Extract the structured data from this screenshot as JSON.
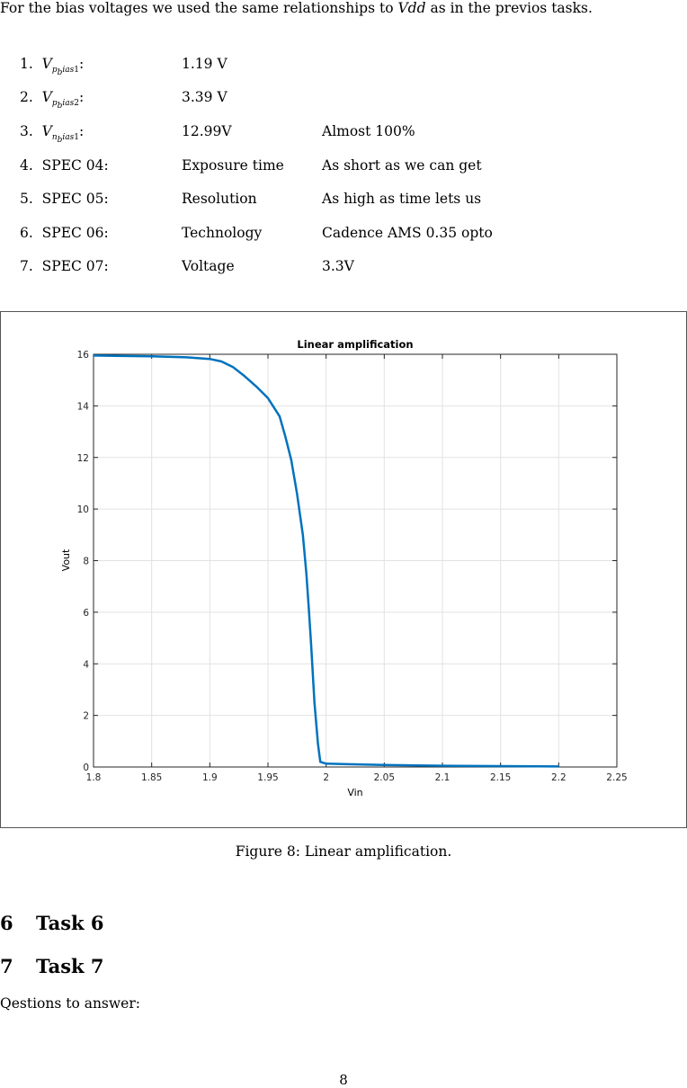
{
  "intro": {
    "text_before": "For the bias voltages we used the same relationships to ",
    "vdd": "Vdd",
    "text_after": " as in the previos tasks."
  },
  "spec_list": [
    {
      "number": "1.",
      "var_main": "V",
      "var_sub": "p",
      "var_subsub": "b",
      "var_rest": "ias",
      "var_idx": "1",
      "colon": ":",
      "value": "1.19 V",
      "note": ""
    },
    {
      "number": "2.",
      "var_main": "V",
      "var_sub": "p",
      "var_subsub": "b",
      "var_rest": "ias",
      "var_idx": "2",
      "colon": ":",
      "value": "3.39 V",
      "note": ""
    },
    {
      "number": "3.",
      "var_main": "V",
      "var_sub": "n",
      "var_subsub": "b",
      "var_rest": "ias",
      "var_idx": "1",
      "colon": ":",
      "value": "12.99V",
      "note": "Almost 100%"
    },
    {
      "number": "4.",
      "label": "SPEC 04:",
      "value": "Exposure time",
      "note": "As short as we can get"
    },
    {
      "number": "5.",
      "label": "SPEC 05:",
      "value": "Resolution",
      "note": "As high as time lets us"
    },
    {
      "number": "6.",
      "label": "SPEC 06:",
      "value": "Technology",
      "note": "Cadence AMS 0.35 opto"
    },
    {
      "number": "7.",
      "label": "SPEC 07:",
      "value": "Voltage",
      "note": "3.3V"
    }
  ],
  "figure": {
    "caption": "Figure 8:  Linear amplification."
  },
  "chart_data": {
    "type": "line",
    "title": "Linear amplification",
    "xlabel": "Vin",
    "ylabel": "Vout",
    "xlim": [
      1.8,
      2.25
    ],
    "ylim": [
      0,
      16
    ],
    "xticks": [
      "1.8",
      "1.85",
      "1.9",
      "1.95",
      "2",
      "2.05",
      "2.1",
      "2.15",
      "2.2",
      "2.25"
    ],
    "yticks": [
      "0",
      "2",
      "4",
      "6",
      "8",
      "10",
      "12",
      "14",
      "16"
    ],
    "grid": true,
    "line_color": "#0072BD",
    "series": [
      {
        "x": [
          1.8,
          1.85,
          1.88,
          1.9,
          1.91,
          1.92,
          1.93,
          1.94,
          1.95,
          1.96,
          1.965,
          1.97,
          1.975,
          1.98,
          1.983,
          1.985,
          1.987,
          1.99,
          1.993,
          1.995,
          2.0,
          2.05,
          2.1,
          2.2
        ],
        "y": [
          15.95,
          15.92,
          15.88,
          15.82,
          15.72,
          15.5,
          15.15,
          14.75,
          14.3,
          13.6,
          12.8,
          11.9,
          10.6,
          9.0,
          7.5,
          6.2,
          4.8,
          2.5,
          0.9,
          0.2,
          0.13,
          0.08,
          0.05,
          0.02
        ]
      }
    ]
  },
  "sections": [
    {
      "number": "6",
      "title": "Task 6"
    },
    {
      "number": "7",
      "title": "Task 7"
    }
  ],
  "questions_text": "Qestions to answer:",
  "page_number": "8"
}
